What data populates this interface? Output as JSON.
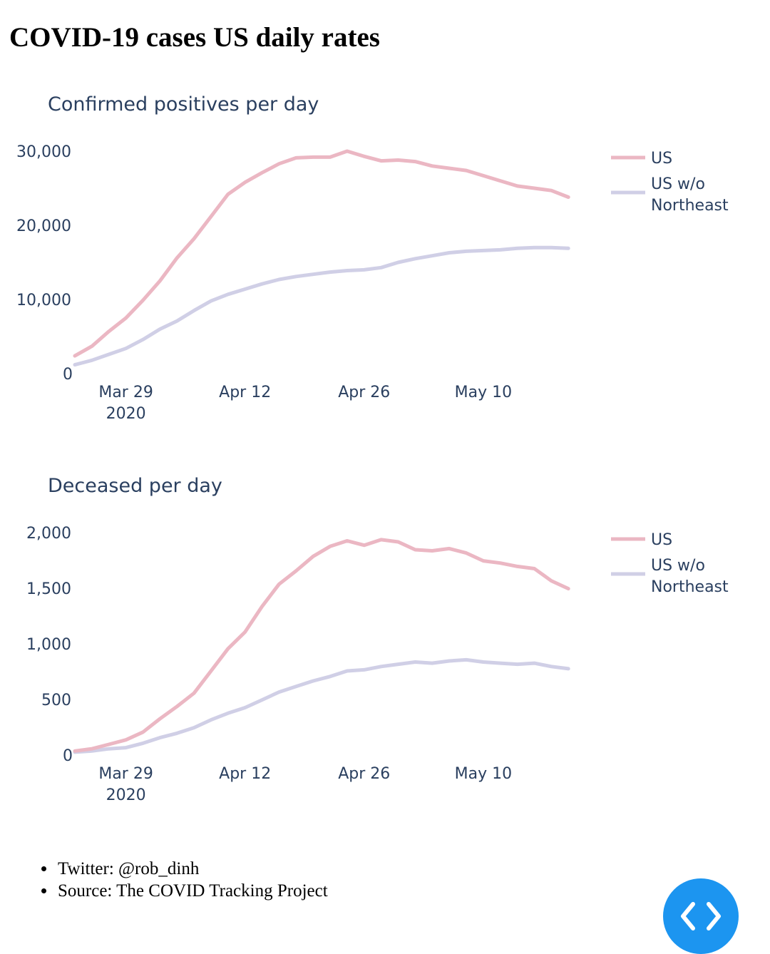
{
  "page": {
    "title": "COVID-19 cases US daily rates",
    "sources": [
      "Twitter: @rob_dinh",
      "Source: The COVID Tracking Project"
    ],
    "code_toggle_icon": "code-brackets-icon"
  },
  "colors": {
    "us": "#ebb7c3",
    "us_wo_ne": "#d0cfe6",
    "text": "#2a3f5f",
    "toggle": "#1c95f0"
  },
  "chart_data": [
    {
      "type": "line",
      "title": "Confirmed positives per day",
      "x_start": "2020-03-23",
      "x_end": "2020-05-23",
      "x_ticks": [
        {
          "date": "2020-03-29",
          "label": "Mar 29",
          "sublabel": "2020"
        },
        {
          "date": "2020-04-12",
          "label": "Apr 12"
        },
        {
          "date": "2020-04-26",
          "label": "Apr 26"
        },
        {
          "date": "2020-05-10",
          "label": "May 10"
        }
      ],
      "ylim": [
        0,
        30000
      ],
      "y_ticks": [
        0,
        10000,
        20000,
        30000
      ],
      "y_tick_labels": [
        "0",
        "10,000",
        "20,000",
        "30,000"
      ],
      "legend": "top-right",
      "series": [
        {
          "name": "US",
          "color": "#ebb7c3",
          "points": [
            [
              "2020-03-23",
              2300
            ],
            [
              "2020-03-25",
              3600
            ],
            [
              "2020-03-27",
              5600
            ],
            [
              "2020-03-29",
              7400
            ],
            [
              "2020-03-31",
              9800
            ],
            [
              "2020-04-02",
              12400
            ],
            [
              "2020-04-04",
              15500
            ],
            [
              "2020-04-06",
              18100
            ],
            [
              "2020-04-08",
              21100
            ],
            [
              "2020-04-10",
              24100
            ],
            [
              "2020-04-12",
              25700
            ],
            [
              "2020-04-14",
              27000
            ],
            [
              "2020-04-16",
              28200
            ],
            [
              "2020-04-18",
              29000
            ],
            [
              "2020-04-20",
              29100
            ],
            [
              "2020-04-22",
              29100
            ],
            [
              "2020-04-24",
              29900
            ],
            [
              "2020-04-26",
              29200
            ],
            [
              "2020-04-28",
              28600
            ],
            [
              "2020-04-30",
              28700
            ],
            [
              "2020-05-02",
              28500
            ],
            [
              "2020-05-04",
              27900
            ],
            [
              "2020-05-06",
              27600
            ],
            [
              "2020-05-08",
              27300
            ],
            [
              "2020-05-10",
              26600
            ],
            [
              "2020-05-12",
              25900
            ],
            [
              "2020-05-14",
              25200
            ],
            [
              "2020-05-16",
              24900
            ],
            [
              "2020-05-18",
              24600
            ],
            [
              "2020-05-20",
              23700
            ]
          ]
        },
        {
          "name": "US w/o Northeast",
          "color": "#d0cfe6",
          "points": [
            [
              "2020-03-23",
              1100
            ],
            [
              "2020-03-25",
              1700
            ],
            [
              "2020-03-27",
              2500
            ],
            [
              "2020-03-29",
              3300
            ],
            [
              "2020-03-31",
              4500
            ],
            [
              "2020-04-02",
              5900
            ],
            [
              "2020-04-04",
              7000
            ],
            [
              "2020-04-06",
              8400
            ],
            [
              "2020-04-08",
              9700
            ],
            [
              "2020-04-10",
              10600
            ],
            [
              "2020-04-12",
              11300
            ],
            [
              "2020-04-14",
              12000
            ],
            [
              "2020-04-16",
              12600
            ],
            [
              "2020-04-18",
              13000
            ],
            [
              "2020-04-20",
              13300
            ],
            [
              "2020-04-22",
              13600
            ],
            [
              "2020-04-24",
              13800
            ],
            [
              "2020-04-26",
              13900
            ],
            [
              "2020-04-28",
              14200
            ],
            [
              "2020-04-30",
              14900
            ],
            [
              "2020-05-02",
              15400
            ],
            [
              "2020-05-04",
              15800
            ],
            [
              "2020-05-06",
              16200
            ],
            [
              "2020-05-08",
              16400
            ],
            [
              "2020-05-10",
              16500
            ],
            [
              "2020-05-12",
              16600
            ],
            [
              "2020-05-14",
              16800
            ],
            [
              "2020-05-16",
              16900
            ],
            [
              "2020-05-18",
              16900
            ],
            [
              "2020-05-20",
              16800
            ]
          ]
        }
      ]
    },
    {
      "type": "line",
      "title": "Deceased per day",
      "x_start": "2020-03-23",
      "x_end": "2020-05-23",
      "x_ticks": [
        {
          "date": "2020-03-29",
          "label": "Mar 29",
          "sublabel": "2020"
        },
        {
          "date": "2020-04-12",
          "label": "Apr 12"
        },
        {
          "date": "2020-04-26",
          "label": "Apr 26"
        },
        {
          "date": "2020-05-10",
          "label": "May 10"
        }
      ],
      "ylim": [
        0,
        2000
      ],
      "y_ticks": [
        0,
        500,
        1000,
        1500,
        2000
      ],
      "y_tick_labels": [
        "0",
        "500",
        "1,000",
        "1,500",
        "2,000"
      ],
      "legend": "top-right",
      "series": [
        {
          "name": "US",
          "color": "#ebb7c3",
          "points": [
            [
              "2020-03-23",
              30
            ],
            [
              "2020-03-25",
              50
            ],
            [
              "2020-03-27",
              90
            ],
            [
              "2020-03-29",
              130
            ],
            [
              "2020-03-31",
              200
            ],
            [
              "2020-04-02",
              320
            ],
            [
              "2020-04-04",
              430
            ],
            [
              "2020-04-06",
              550
            ],
            [
              "2020-04-08",
              750
            ],
            [
              "2020-04-10",
              950
            ],
            [
              "2020-04-12",
              1100
            ],
            [
              "2020-04-14",
              1330
            ],
            [
              "2020-04-16",
              1530
            ],
            [
              "2020-04-18",
              1650
            ],
            [
              "2020-04-20",
              1780
            ],
            [
              "2020-04-22",
              1870
            ],
            [
              "2020-04-24",
              1920
            ],
            [
              "2020-04-26",
              1880
            ],
            [
              "2020-04-28",
              1930
            ],
            [
              "2020-04-30",
              1910
            ],
            [
              "2020-05-02",
              1840
            ],
            [
              "2020-05-04",
              1830
            ],
            [
              "2020-05-06",
              1850
            ],
            [
              "2020-05-08",
              1810
            ],
            [
              "2020-05-10",
              1740
            ],
            [
              "2020-05-12",
              1720
            ],
            [
              "2020-05-14",
              1690
            ],
            [
              "2020-05-16",
              1670
            ],
            [
              "2020-05-18",
              1560
            ],
            [
              "2020-05-20",
              1490
            ]
          ]
        },
        {
          "name": "US w/o Northeast",
          "color": "#d0cfe6",
          "points": [
            [
              "2020-03-23",
              20
            ],
            [
              "2020-03-25",
              30
            ],
            [
              "2020-03-27",
              50
            ],
            [
              "2020-03-29",
              60
            ],
            [
              "2020-03-31",
              100
            ],
            [
              "2020-04-02",
              150
            ],
            [
              "2020-04-04",
              190
            ],
            [
              "2020-04-06",
              240
            ],
            [
              "2020-04-08",
              310
            ],
            [
              "2020-04-10",
              370
            ],
            [
              "2020-04-12",
              420
            ],
            [
              "2020-04-14",
              490
            ],
            [
              "2020-04-16",
              560
            ],
            [
              "2020-04-18",
              610
            ],
            [
              "2020-04-20",
              660
            ],
            [
              "2020-04-22",
              700
            ],
            [
              "2020-04-24",
              750
            ],
            [
              "2020-04-26",
              760
            ],
            [
              "2020-04-28",
              790
            ],
            [
              "2020-04-30",
              810
            ],
            [
              "2020-05-02",
              830
            ],
            [
              "2020-05-04",
              820
            ],
            [
              "2020-05-06",
              840
            ],
            [
              "2020-05-08",
              850
            ],
            [
              "2020-05-10",
              830
            ],
            [
              "2020-05-12",
              820
            ],
            [
              "2020-05-14",
              810
            ],
            [
              "2020-05-16",
              820
            ],
            [
              "2020-05-18",
              790
            ],
            [
              "2020-05-20",
              770
            ]
          ]
        }
      ]
    }
  ]
}
